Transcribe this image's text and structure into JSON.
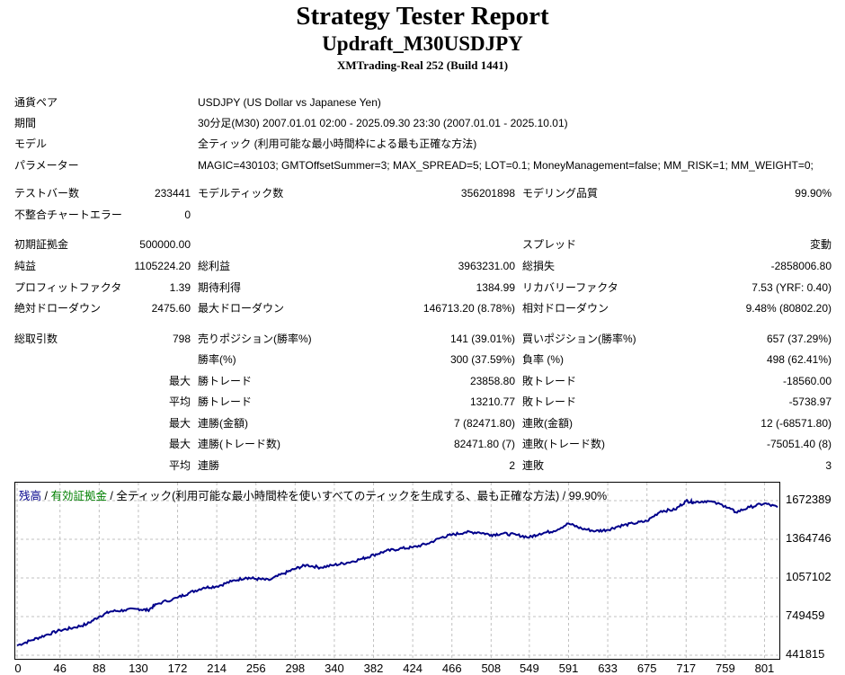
{
  "header": {
    "title": "Strategy Tester Report",
    "subtitle": "Updraft_M30USDJPY",
    "server": "XMTrading-Real 252 (Build 1441)"
  },
  "settings": [
    {
      "label": "通貨ペア",
      "value": "USDJPY (US Dollar vs Japanese Yen)"
    },
    {
      "label": "期間",
      "value": "30分足(M30) 2007.01.01 02:00 - 2025.09.30 23:30 (2007.01.01 - 2025.10.01)"
    },
    {
      "label": "モデル",
      "value": "全ティック (利用可能な最小時間枠による最も正確な方法)"
    },
    {
      "label": "パラメーター",
      "value": "MAGIC=430103; GMTOffsetSummer=3; MAX_SPREAD=5; LOT=0.1; MoneyManagement=false; MM_RISK=1; MM_WEIGHT=0;"
    }
  ],
  "stats": {
    "bars_label": "テストバー数",
    "bars": "233441",
    "ticks_label": "モデルティック数",
    "ticks": "356201898",
    "quality_label": "モデリング品質",
    "quality": "99.90%",
    "mismatch_label": "不整合チャートエラー",
    "mismatch": "0",
    "initial_deposit_label": "初期証拠金",
    "initial_deposit": "500000.00",
    "spread_label": "スプレッド",
    "spread": "変動",
    "net_profit_label": "純益",
    "net_profit": "1105224.20",
    "gross_profit_label": "総利益",
    "gross_profit": "3963231.00",
    "gross_loss_label": "総損失",
    "gross_loss": "-2858006.80",
    "profit_factor_label": "プロフィットファクタ",
    "profit_factor": "1.39",
    "expected_payoff_label": "期待利得",
    "expected_payoff": "1384.99",
    "recovery_factor_label": "リカバリーファクタ",
    "recovery_factor": "7.53 (YRF: 0.40)",
    "abs_dd_label": "絶対ドローダウン",
    "abs_dd": "2475.60",
    "max_dd_label": "最大ドローダウン",
    "max_dd": "146713.20 (8.78%)",
    "rel_dd_label": "相対ドローダウン",
    "rel_dd": "9.48% (80802.20)",
    "total_trades_label": "総取引数",
    "total_trades": "798",
    "short_label": "売りポジション(勝率%)",
    "short": "141 (39.01%)",
    "long_label": "買いポジション(勝率%)",
    "long": "657 (37.29%)",
    "win_pct_label": "勝率(%)",
    "win_pct": "300 (37.59%)",
    "loss_pct_label": "負率 (%)",
    "loss_pct": "498 (62.41%)",
    "max_label": "最大",
    "avg_label": "平均",
    "win_trade_label": "勝トレード",
    "lose_trade_label": "敗トレード",
    "largest_win": "23858.80",
    "largest_loss": "-18560.00",
    "avg_win": "13210.77",
    "avg_loss": "-5738.97",
    "consec_win_amt_label": "連勝(金額)",
    "consec_win_amt": "7 (82471.80)",
    "consec_loss_amt_label": "連敗(金額)",
    "consec_loss_amt": "12 (-68571.80)",
    "consec_win_cnt_label": "連勝(トレード数)",
    "consec_win_cnt": "82471.80 (7)",
    "consec_loss_cnt_label": "連敗(トレード数)",
    "consec_loss_cnt": "-75051.40 (8)",
    "avg_consec_win_label": "連勝",
    "avg_consec_win": "2",
    "avg_consec_loss_label": "連敗",
    "avg_consec_loss": "3"
  },
  "chart_data": {
    "type": "line",
    "legend_parts": {
      "balance": "残高",
      "sep1": " / ",
      "equity": "有効証拠金",
      "rest": " / 全ティック(利用可能な最小時間枠を使いすべてのティックを生成する、最も正確な方法) / 99.90%"
    },
    "colors": {
      "balance": "#00008b",
      "equity": "#008000",
      "grid": "#c0c0c0"
    },
    "y_ticks": [
      "1672389",
      "1364746",
      "1057102",
      "749459",
      "441815"
    ],
    "x_ticks": [
      "0",
      "46",
      "88",
      "130",
      "172",
      "214",
      "256",
      "298",
      "340",
      "382",
      "424",
      "466",
      "508",
      "549",
      "591",
      "633",
      "675",
      "717",
      "759",
      "801"
    ],
    "ylim": [
      441815,
      1672389
    ],
    "xlim": [
      0,
      815
    ],
    "balance": {
      "x": [
        0,
        15,
        30,
        46,
        60,
        75,
        88,
        100,
        115,
        130,
        140,
        150,
        172,
        185,
        200,
        214,
        230,
        245,
        256,
        270,
        285,
        298,
        310,
        325,
        340,
        355,
        370,
        382,
        395,
        410,
        424,
        440,
        455,
        466,
        480,
        495,
        508,
        520,
        535,
        549,
        560,
        575,
        591,
        605,
        620,
        633,
        645,
        660,
        675,
        690,
        705,
        717,
        725,
        740,
        759,
        770,
        785,
        801,
        815
      ],
      "y": [
        520000,
        560000,
        600000,
        640000,
        660000,
        690000,
        750000,
        790000,
        800000,
        810000,
        800000,
        850000,
        900000,
        940000,
        980000,
        990000,
        1030000,
        1060000,
        1050000,
        1040000,
        1090000,
        1130000,
        1160000,
        1140000,
        1160000,
        1180000,
        1210000,
        1240000,
        1270000,
        1290000,
        1300000,
        1330000,
        1380000,
        1400000,
        1420000,
        1420000,
        1400000,
        1410000,
        1400000,
        1380000,
        1410000,
        1430000,
        1490000,
        1450000,
        1430000,
        1440000,
        1470000,
        1490000,
        1510000,
        1590000,
        1600000,
        1670000,
        1660000,
        1670000,
        1630000,
        1580000,
        1620000,
        1650000,
        1620000
      ]
    }
  }
}
